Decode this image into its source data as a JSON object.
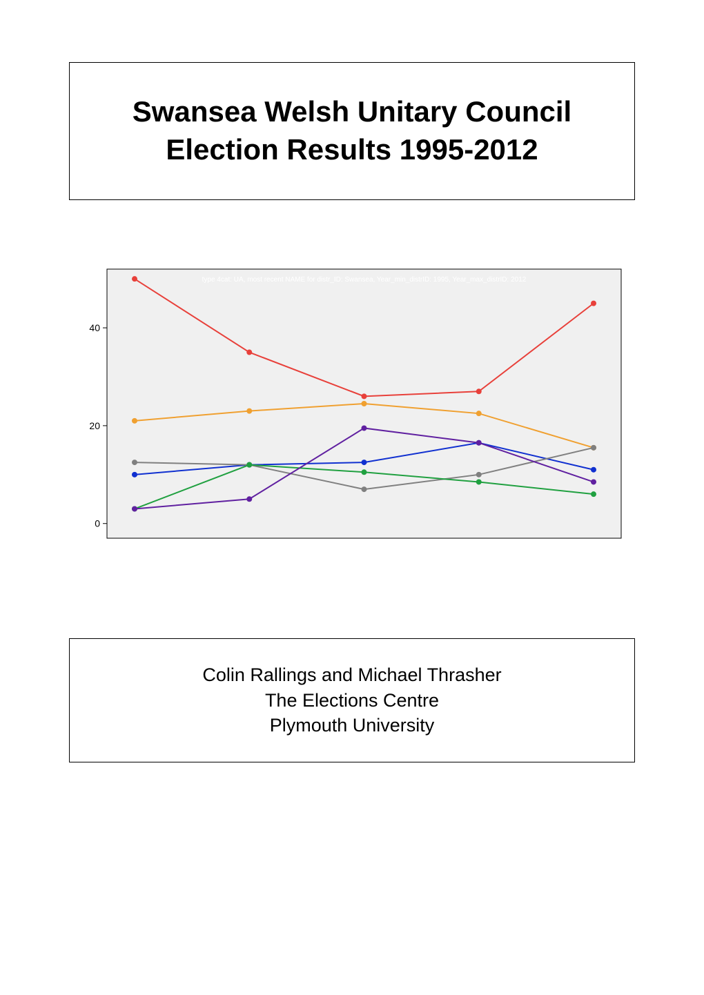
{
  "title": "Swansea Welsh Unitary Council Election Results 1995-2012",
  "credits": {
    "line1": "Colin Rallings and Michael Thrasher",
    "line2": "The Elections Centre",
    "line3": "Plymouth University"
  },
  "chart": {
    "type": "line",
    "background_color": "#f0f0f0",
    "border_color": "#000000",
    "subtitle": "type 4cat: UA, most recent NAME for distr_ID: Swansea,  Year_min_distrID: 1995,   Year_max_distrID: 2012",
    "subtitle_color": "#ffffff",
    "subtitle_fontsize": 10,
    "x_points": [
      0,
      1,
      2,
      3,
      4
    ],
    "ylim": [
      -3,
      52
    ],
    "yticks": [
      0,
      20,
      40
    ],
    "axis_color": "#000000",
    "tick_fontsize": 14,
    "line_width": 2,
    "marker_radius": 4,
    "series": [
      {
        "name": "red",
        "color": "#e8403a",
        "values": [
          50,
          35,
          26,
          27,
          45
        ]
      },
      {
        "name": "orange",
        "color": "#f0a030",
        "values": [
          21,
          23,
          24.5,
          22.5,
          15.5
        ]
      },
      {
        "name": "blue",
        "color": "#1030d0",
        "values": [
          10,
          12,
          12.5,
          16.5,
          11
        ]
      },
      {
        "name": "grey",
        "color": "#808080",
        "values": [
          12.5,
          12,
          7,
          10,
          15.5
        ]
      },
      {
        "name": "green",
        "color": "#20a040",
        "values": [
          3,
          12,
          10.5,
          8.5,
          6
        ]
      },
      {
        "name": "purple",
        "color": "#6020a0",
        "values": [
          3,
          5,
          19.5,
          16.5,
          8.5
        ]
      }
    ]
  }
}
